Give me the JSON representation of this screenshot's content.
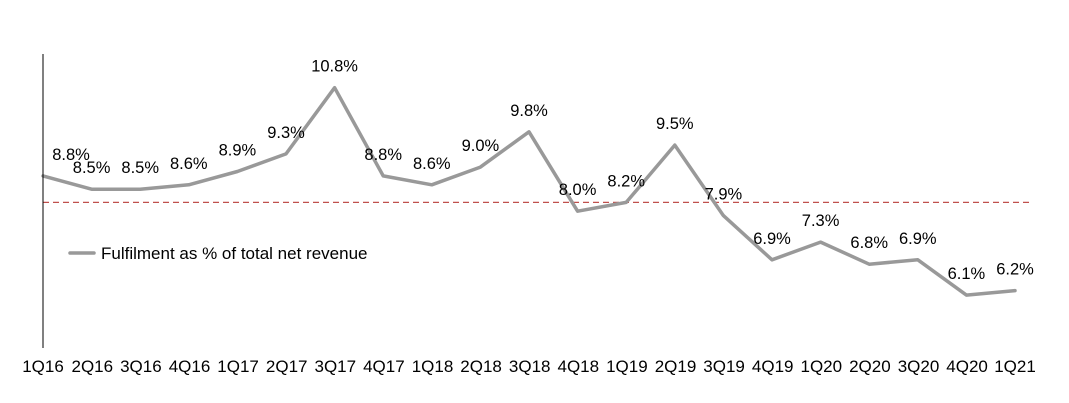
{
  "chart_data": {
    "type": "line",
    "title": "",
    "xlabel": "",
    "ylabel": "",
    "categories": [
      "1Q16",
      "2Q16",
      "3Q16",
      "4Q16",
      "1Q17",
      "2Q17",
      "3Q17",
      "4Q17",
      "1Q18",
      "2Q18",
      "3Q18",
      "4Q18",
      "1Q19",
      "2Q19",
      "3Q19",
      "4Q19",
      "1Q20",
      "2Q20",
      "3Q20",
      "4Q20",
      "1Q21"
    ],
    "series": [
      {
        "name": "Fulfilment as % of total net revenue",
        "values": [
          8.8,
          8.5,
          8.5,
          8.6,
          8.9,
          9.3,
          10.8,
          8.8,
          8.6,
          9.0,
          9.8,
          8.0,
          8.2,
          9.5,
          7.9,
          6.9,
          7.3,
          6.8,
          6.9,
          6.1,
          6.2
        ],
        "data_labels": [
          "8.8%",
          "8.5%",
          "8.5%",
          "8.6%",
          "8.9%",
          "9.3%",
          "10.8%",
          "8.8%",
          "8.6%",
          "9.0%",
          "9.8%",
          "8.0%",
          "8.2%",
          "9.5%",
          "7.9%",
          "6.9%",
          "7.3%",
          "6.8%",
          "6.9%",
          "6.1%",
          "6.2%"
        ],
        "color": "#999999"
      }
    ],
    "reference_line": {
      "value": 8.2,
      "style": "dashed",
      "color": "#c0504d"
    },
    "ylim": [
      4.9,
      11.7
    ],
    "grid": false,
    "legend": {
      "position": "left-middle",
      "label": "Fulfilment as % of total net revenue"
    }
  }
}
